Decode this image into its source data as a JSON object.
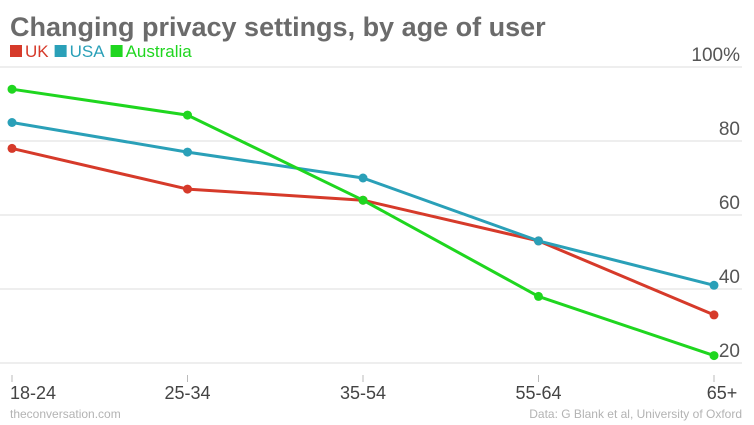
{
  "chart_data": {
    "type": "line",
    "title": "Changing privacy settings, by age of user",
    "categories": [
      "18-24",
      "25-34",
      "35-54",
      "55-64",
      "65+"
    ],
    "series": [
      {
        "name": "UK",
        "color": "#d63a2a",
        "values": [
          78,
          67,
          64,
          53,
          33
        ]
      },
      {
        "name": "USA",
        "color": "#2aa0b8",
        "values": [
          85,
          77,
          70,
          53,
          41
        ]
      },
      {
        "name": "Australia",
        "color": "#1fd61f",
        "values": [
          94,
          87,
          64,
          38,
          22
        ]
      }
    ],
    "yticks": [
      "100%",
      "80",
      "60",
      "40",
      "20"
    ],
    "ytick_values": [
      100,
      80,
      60,
      40,
      20
    ],
    "ylim": [
      20,
      100
    ],
    "grid": true,
    "legend_position": "top-left",
    "xlabel": "",
    "ylabel": ""
  },
  "footer": {
    "source_left": "theconversation.com",
    "source_right": "Data: G Blank et al, University of Oxford"
  }
}
